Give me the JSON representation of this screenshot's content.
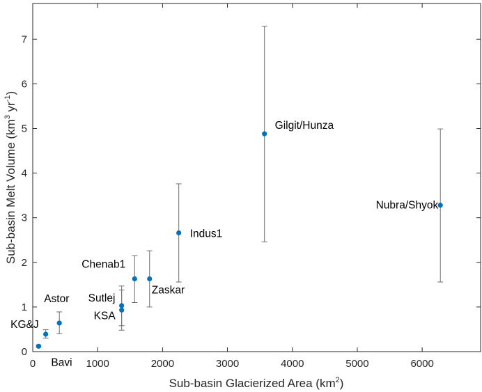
{
  "chart_data": {
    "type": "scatter",
    "title": "",
    "xlabel": {
      "main": "Sub-basin Glacierized Area (km",
      "sup": "2",
      "end": ")"
    },
    "ylabel": {
      "main": "Sub-basin Melt Volume (km",
      "sup1": "3",
      "mid": " yr",
      "sup2": "-1",
      "end": ")"
    },
    "xlim": [
      0,
      6900
    ],
    "ylim": [
      0,
      7.8
    ],
    "xticks": [
      0,
      1000,
      2000,
      3000,
      4000,
      5000,
      6000
    ],
    "yticks": [
      0,
      1,
      2,
      3,
      4,
      5,
      6,
      7
    ],
    "grid": false,
    "marker_color": "#0072bd",
    "errorbar_color": "#6e6e6e",
    "points": [
      {
        "label": "Bavi",
        "x": 90,
        "y": 0.12,
        "low": 0.1,
        "high": 0.15
      },
      {
        "label": "KG&J",
        "x": 200,
        "y": 0.39,
        "low": 0.3,
        "high": 0.49
      },
      {
        "label": "Astor",
        "x": 410,
        "y": 0.64,
        "low": 0.4,
        "high": 0.89
      },
      {
        "label": "KSA",
        "x": 1370,
        "y": 0.93,
        "low": 0.48,
        "high": 1.38
      },
      {
        "label": "Sutlej",
        "x": 1370,
        "y": 1.03,
        "low": 0.58,
        "high": 1.47
      },
      {
        "label": "Chenab1",
        "x": 1570,
        "y": 1.63,
        "low": 1.1,
        "high": 2.15
      },
      {
        "label": "Zaskar",
        "x": 1800,
        "y": 1.63,
        "low": 1.0,
        "high": 2.26
      },
      {
        "label": "Indus1",
        "x": 2250,
        "y": 2.66,
        "low": 1.56,
        "high": 3.76
      },
      {
        "label": "Gilgit/Hunza",
        "x": 3570,
        "y": 4.88,
        "low": 2.46,
        "high": 7.29
      },
      {
        "label": "Nubra/Shyok",
        "x": 6280,
        "y": 3.28,
        "low": 1.56,
        "high": 4.99
      }
    ]
  }
}
